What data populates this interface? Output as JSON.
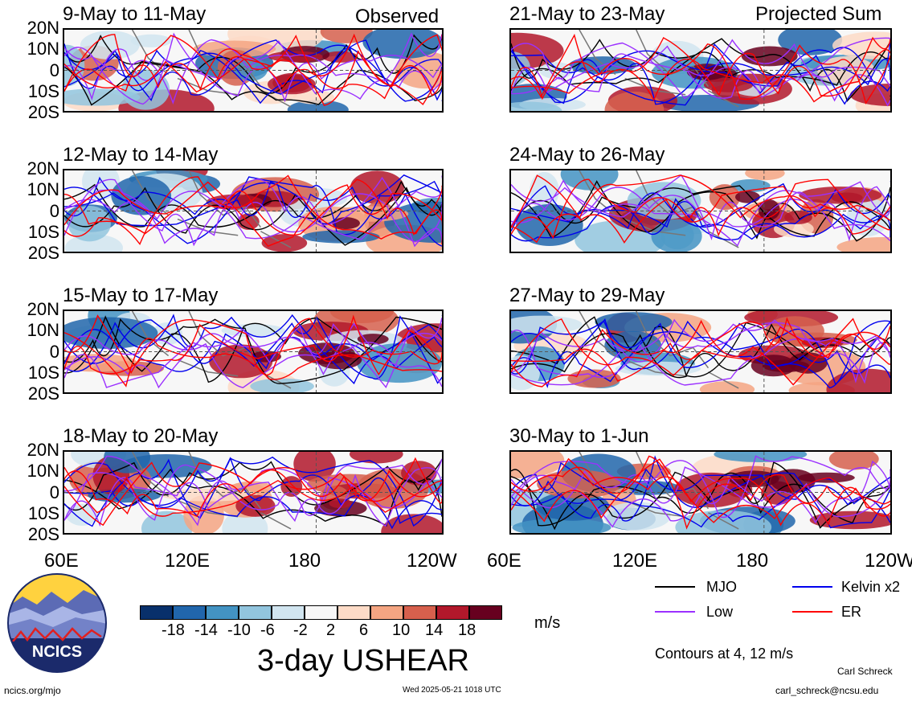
{
  "header": {
    "left_label": "Observed",
    "right_label": "Projected Sum"
  },
  "panels_left": [
    {
      "title": "9-May to 11-May"
    },
    {
      "title": "12-May to 14-May"
    },
    {
      "title": "15-May to 17-May"
    },
    {
      "title": "18-May to 20-May"
    }
  ],
  "panels_right": [
    {
      "title": "21-May to 23-May"
    },
    {
      "title": "24-May to 26-May"
    },
    {
      "title": "27-May to 29-May"
    },
    {
      "title": "30-May to 1-Jun"
    }
  ],
  "lat_ticks": [
    "20N",
    "10N",
    "0",
    "10S",
    "20S"
  ],
  "lon_ticks_left": [
    "60E",
    "120E",
    "180",
    "120W"
  ],
  "lon_ticks_right": [
    "60E",
    "120E",
    "180",
    "120W"
  ],
  "colorbar": {
    "ticks": [
      "-18",
      "-14",
      "-10",
      "-6",
      "-2",
      "2",
      "6",
      "10",
      "14",
      "18"
    ],
    "colors": [
      "#08306b",
      "#2166ac",
      "#4393c3",
      "#92c5de",
      "#d1e5f0",
      "#f7f7f7",
      "#fddbc7",
      "#f4a582",
      "#d6604d",
      "#b2182b",
      "#67001f"
    ],
    "unit": "m/s"
  },
  "legend": {
    "items": [
      {
        "label": "MJO",
        "color": "#000000"
      },
      {
        "label": "Kelvin x2",
        "color": "#0000ee"
      },
      {
        "label": "Low",
        "color": "#9b30ff"
      },
      {
        "label": "ER",
        "color": "#ff0000"
      }
    ],
    "contour_note": "Contours at 4, 12 m/s"
  },
  "title": "3-day USHEAR",
  "logo_text": "NCICS",
  "footer": {
    "website": "ncics.org/mjo",
    "timestamp": "Wed 2025-05-21 1018 UTC",
    "author": "Carl Schreck",
    "email": "carl_schreck@ncsu.edu"
  }
}
